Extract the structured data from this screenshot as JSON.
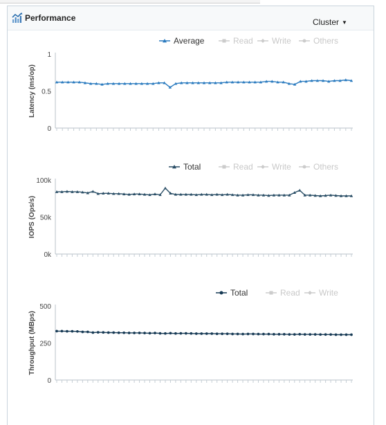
{
  "panel": {
    "title": "Performance",
    "title_icon": "chart-trend-icon",
    "dropdown": {
      "selected": "Cluster",
      "icon": "caret-down-icon"
    }
  },
  "chart_data": [
    {
      "type": "line",
      "ylabel": "Latency (ms/op)",
      "ylim": [
        0,
        1
      ],
      "yticks": [
        {
          "v": 0,
          "label": "0"
        },
        {
          "v": 0.5,
          "label": "0.5"
        },
        {
          "v": 1,
          "label": "1"
        }
      ],
      "legend": [
        {
          "name": "Average",
          "color": "#2b7bbf",
          "marker": "triangle",
          "active": true
        },
        {
          "name": "Read",
          "color": "#cccccc",
          "marker": "square",
          "active": false
        },
        {
          "name": "Write",
          "color": "#cccccc",
          "marker": "diamond",
          "active": false
        },
        {
          "name": "Others",
          "color": "#cccccc",
          "marker": "circle",
          "active": false
        }
      ],
      "series": [
        {
          "name": "Average",
          "color": "#2b7bbf",
          "marker": "triangle",
          "values": [
            0.62,
            0.62,
            0.62,
            0.62,
            0.62,
            0.61,
            0.6,
            0.6,
            0.59,
            0.6,
            0.6,
            0.6,
            0.6,
            0.6,
            0.6,
            0.6,
            0.6,
            0.6,
            0.61,
            0.61,
            0.55,
            0.6,
            0.61,
            0.61,
            0.61,
            0.61,
            0.61,
            0.61,
            0.61,
            0.61,
            0.62,
            0.62,
            0.62,
            0.62,
            0.62,
            0.62,
            0.62,
            0.63,
            0.63,
            0.62,
            0.62,
            0.6,
            0.59,
            0.63,
            0.63,
            0.64,
            0.64,
            0.64,
            0.63,
            0.64,
            0.64,
            0.65,
            0.64
          ]
        }
      ]
    },
    {
      "type": "line",
      "ylabel": "IOPS (Ops/s)",
      "ylim": [
        0,
        100000
      ],
      "yticks": [
        {
          "v": 0,
          "label": "0k"
        },
        {
          "v": 50000,
          "label": "50k"
        },
        {
          "v": 100000,
          "label": "100k"
        }
      ],
      "legend": [
        {
          "name": "Total",
          "color": "#2a4e66",
          "marker": "triangle",
          "active": true
        },
        {
          "name": "Read",
          "color": "#cccccc",
          "marker": "square",
          "active": false
        },
        {
          "name": "Write",
          "color": "#cccccc",
          "marker": "diamond",
          "active": false
        },
        {
          "name": "Others",
          "color": "#cccccc",
          "marker": "circle",
          "active": false
        }
      ],
      "series": [
        {
          "name": "Total",
          "color": "#2a4e66",
          "marker": "triangle",
          "values": [
            84000,
            84000,
            84500,
            84000,
            84000,
            83500,
            82500,
            84500,
            81500,
            82000,
            82000,
            81500,
            81500,
            81000,
            80500,
            81000,
            81000,
            80500,
            80000,
            81000,
            80000,
            89000,
            82000,
            80500,
            80500,
            80500,
            80500,
            80000,
            80500,
            80500,
            80000,
            80500,
            80000,
            80500,
            80000,
            79500,
            79500,
            80000,
            80000,
            79500,
            79500,
            79000,
            79500,
            79500,
            79500,
            79500,
            83000,
            86000,
            79500,
            79500,
            79000,
            78500,
            79000,
            79500,
            79000,
            78500,
            78500,
            78500
          ]
        }
      ]
    },
    {
      "type": "line",
      "ylabel": "Throughput (MBps)",
      "ylim": [
        0,
        500
      ],
      "yticks": [
        {
          "v": 0,
          "label": "0"
        },
        {
          "v": 250,
          "label": "250"
        },
        {
          "v": 500,
          "label": "500"
        }
      ],
      "legend": [
        {
          "name": "Total",
          "color": "#173a55",
          "marker": "circle",
          "active": true
        },
        {
          "name": "Read",
          "color": "#cccccc",
          "marker": "square",
          "active": false
        },
        {
          "name": "Write",
          "color": "#cccccc",
          "marker": "diamond",
          "active": false
        }
      ],
      "series": [
        {
          "name": "Total",
          "color": "#173a55",
          "marker": "circle",
          "values": [
            330,
            330,
            329,
            329,
            328,
            325,
            325,
            320,
            322,
            321,
            320,
            320,
            319,
            319,
            318,
            318,
            318,
            317,
            316,
            317,
            315,
            314,
            316,
            314,
            315,
            315,
            314,
            313,
            313,
            313,
            313,
            312,
            312,
            312,
            311,
            311,
            310,
            311,
            311,
            310,
            310,
            310,
            309,
            309,
            309,
            308,
            308,
            309,
            308,
            308,
            308,
            307,
            307,
            307,
            306,
            306,
            306,
            306
          ]
        }
      ]
    }
  ]
}
